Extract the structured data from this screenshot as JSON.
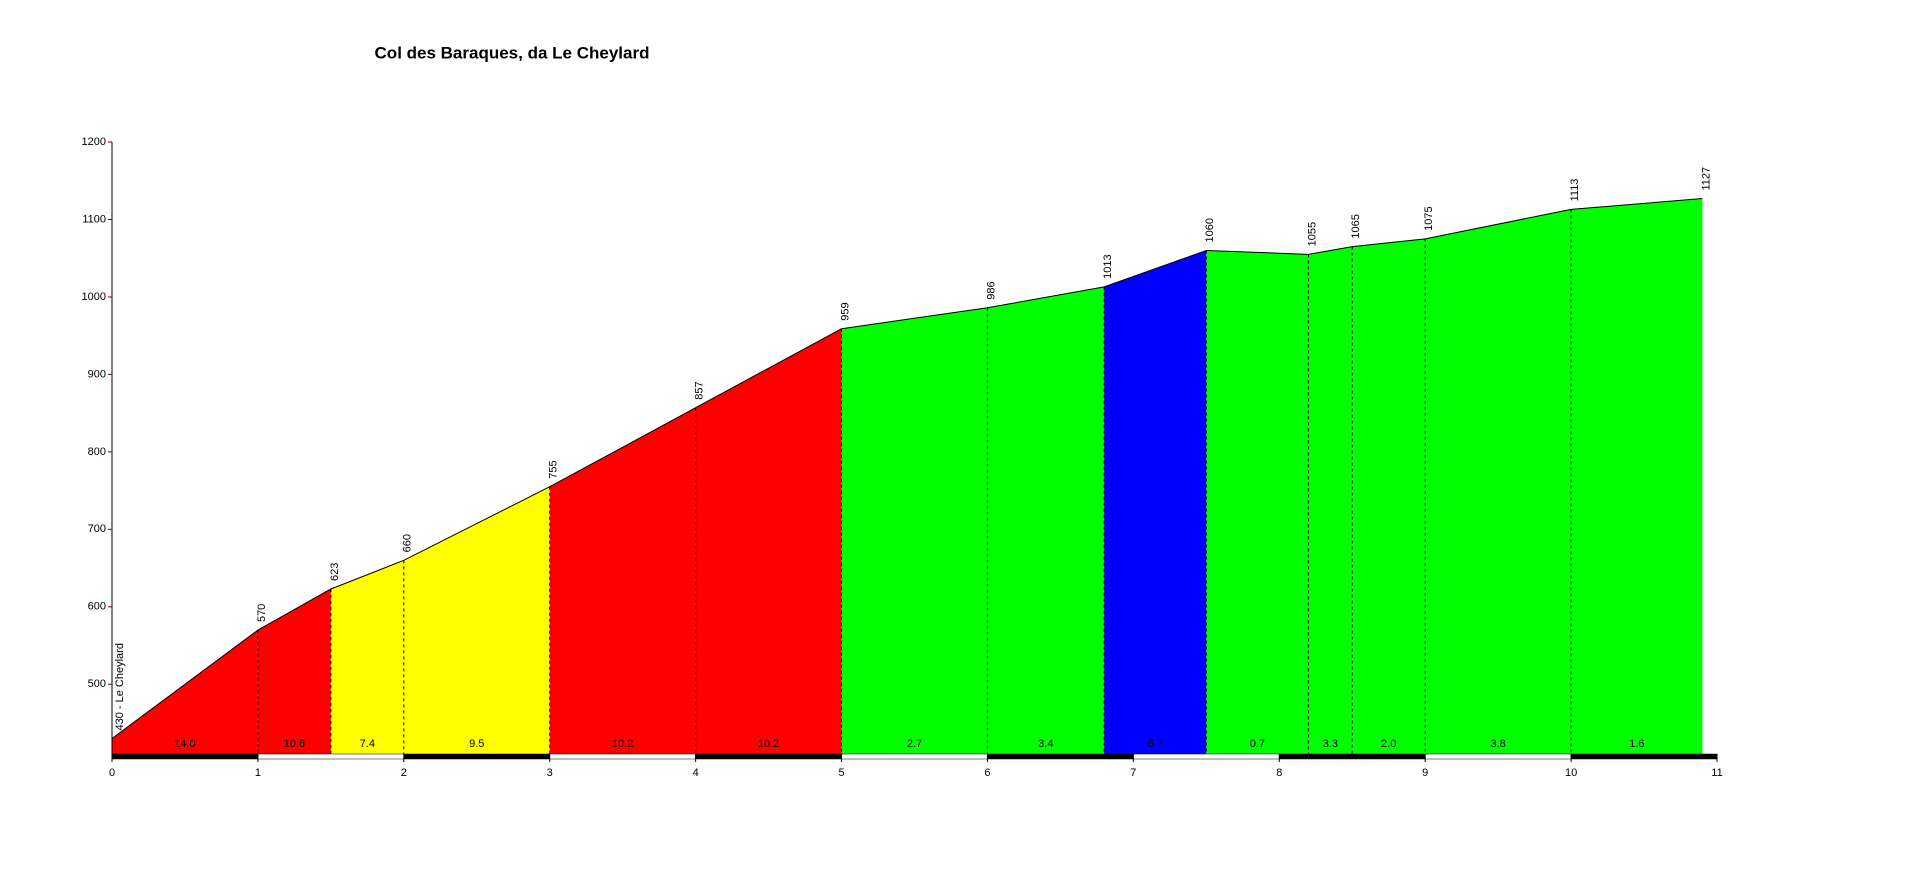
{
  "chart_data": {
    "type": "area",
    "title": "Col des Baraques, da Le Cheylard",
    "x": [
      0,
      1,
      1.5,
      2,
      3,
      4,
      5,
      6,
      6.8,
      7.5,
      8.2,
      8.5,
      9,
      10,
      10.9
    ],
    "values": [
      430,
      570,
      623,
      660,
      755,
      857,
      959,
      986,
      1013,
      1060,
      1055,
      1065,
      1075,
      1113,
      1127
    ],
    "value_labels": [
      "430 - Le Cheylard",
      "570",
      "623",
      "660",
      "755",
      "857",
      "959",
      "986",
      "1013",
      "1060",
      "1055",
      "1065",
      "1075",
      "1113",
      "1127"
    ],
    "segment_labels": [
      "14.0",
      "10.6",
      "7.4",
      "9.5",
      "10.2",
      "10.2",
      "2.7",
      "3.4",
      "6.7",
      "0.7",
      "3.3",
      "2.0",
      "3.8",
      "1.6"
    ],
    "segment_colors": [
      "#ff0000",
      "#ff0000",
      "#ffff00",
      "#ffff00",
      "#ff0000",
      "#ff0000",
      "#00ff00",
      "#00ff00",
      "#0000ff",
      "#00ff00",
      "#00ff00",
      "#00ff00",
      "#00ff00",
      "#00ff00"
    ],
    "xlim": [
      0,
      11
    ],
    "xticks": [
      0,
      1,
      2,
      3,
      4,
      5,
      6,
      7,
      8,
      9,
      10,
      11
    ],
    "ylim": [
      410,
      1200
    ],
    "yticks": [
      500,
      600,
      700,
      800,
      900,
      1000,
      1100,
      1200
    ]
  }
}
